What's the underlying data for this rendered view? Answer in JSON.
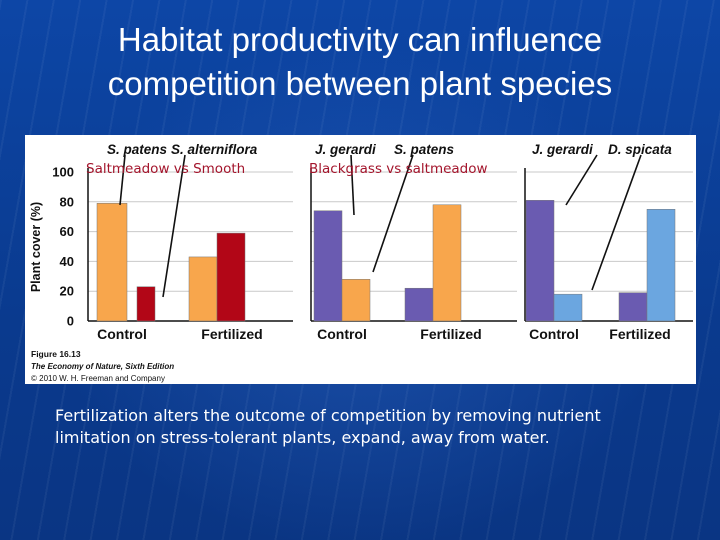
{
  "slide": {
    "title_line1": "Habitat productivity can influence",
    "title_line2": "competition between plant species",
    "caption_line1": "Fertilization alters the outcome of competition by removing nutrient",
    "caption_line2": "limitation on stress-tolerant plants, expand, away from water."
  },
  "figure": {
    "credit_line1": "Figure 16.13",
    "credit_line2": "The Economy of Nature, Sixth Edition",
    "credit_line3": "© 2010 W. H. Freeman and Company"
  },
  "annotations": {
    "left": "Saltmeadow  vs Smooth",
    "middle": "Blackgrass vs saltmeadow"
  },
  "chart_data": {
    "type": "bar",
    "ylabel": "Plant cover (%)",
    "ylim": [
      0,
      100
    ],
    "yticks": [
      0,
      20,
      40,
      60,
      80,
      100
    ],
    "grid": true,
    "panels": [
      {
        "species": [
          {
            "name": "S. patens",
            "color": "#f8a64c"
          },
          {
            "name": "S. alterniflora",
            "color": "#b20617"
          }
        ],
        "categories": [
          "Control",
          "Fertilized"
        ],
        "series": [
          {
            "name": "S. patens",
            "values": [
              79,
              43
            ]
          },
          {
            "name": "S. alterniflora",
            "values": [
              23,
              59
            ]
          }
        ]
      },
      {
        "species": [
          {
            "name": "J. gerardi",
            "color": "#6a5bb1"
          },
          {
            "name": "S. patens",
            "color": "#f8a64c"
          }
        ],
        "categories": [
          "Control",
          "Fertilized"
        ],
        "series": [
          {
            "name": "J. gerardi",
            "values": [
              74,
              22
            ]
          },
          {
            "name": "S. patens",
            "values": [
              28,
              78
            ]
          }
        ]
      },
      {
        "species": [
          {
            "name": "J. gerardi",
            "color": "#6a5bb1"
          },
          {
            "name": "D. spicata",
            "color": "#6ba6e0"
          }
        ],
        "categories": [
          "Control",
          "Fertilized"
        ],
        "series": [
          {
            "name": "J. gerardi",
            "values": [
              81,
              19
            ]
          },
          {
            "name": "D. spicata",
            "values": [
              18,
              75
            ]
          }
        ]
      }
    ]
  }
}
